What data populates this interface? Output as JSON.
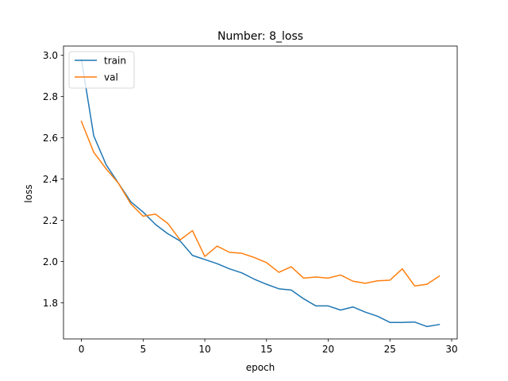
{
  "chart_data": {
    "type": "line",
    "title": "Number: 8_loss",
    "xlabel": "epoch",
    "ylabel": "loss",
    "xlim": [
      -1.45,
      30.45
    ],
    "ylim": [
      1.625,
      3.045
    ],
    "x_ticks": [
      0,
      5,
      10,
      15,
      20,
      25,
      30
    ],
    "y_ticks": [
      1.8,
      2.0,
      2.2,
      2.4,
      2.6,
      2.8,
      3.0
    ],
    "x_tick_labels": [
      "0",
      "5",
      "10",
      "15",
      "20",
      "25",
      "30"
    ],
    "y_tick_labels": [
      "1.8",
      "2.0",
      "2.2",
      "2.4",
      "2.6",
      "2.8",
      "3.0"
    ],
    "grid": false,
    "legend_position": "top-left",
    "x": [
      0,
      1,
      2,
      3,
      4,
      5,
      6,
      7,
      8,
      9,
      10,
      11,
      12,
      13,
      14,
      15,
      16,
      17,
      18,
      19,
      20,
      21,
      22,
      23,
      24,
      25,
      26,
      27,
      28,
      29
    ],
    "series": [
      {
        "name": "train",
        "color": "#1f77b4",
        "values": [
          2.98,
          2.61,
          2.47,
          2.38,
          2.29,
          2.24,
          2.18,
          2.135,
          2.1,
          2.03,
          2.01,
          1.99,
          1.965,
          1.945,
          1.915,
          1.89,
          1.868,
          1.862,
          1.82,
          1.785,
          1.785,
          1.765,
          1.78,
          1.755,
          1.735,
          1.705,
          1.705,
          1.707,
          1.685,
          1.695
        ]
      },
      {
        "name": "val",
        "color": "#ff7f0e",
        "values": [
          2.68,
          2.53,
          2.45,
          2.38,
          2.28,
          2.22,
          2.23,
          2.185,
          2.105,
          2.15,
          2.025,
          2.075,
          2.045,
          2.04,
          2.02,
          1.995,
          1.948,
          1.975,
          1.92,
          1.925,
          1.92,
          1.935,
          1.905,
          1.895,
          1.907,
          1.91,
          1.965,
          1.882,
          1.89,
          1.93
        ]
      }
    ]
  }
}
